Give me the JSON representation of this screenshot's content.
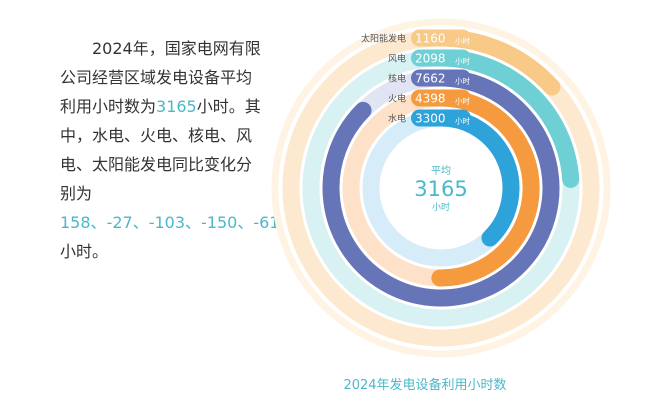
{
  "description": {
    "part1": "2024年，国家电网有限公司经营区域发电设备平均利用小时数为",
    "avg_value": "3165",
    "part2": "小时。其中，水电、火电、核电、风电、太阳能发电同比变化分别为",
    "changes": [
      "158",
      "-27",
      "-103",
      "-150",
      "-61"
    ],
    "separator": "、",
    "part3": "小时。"
  },
  "chart_data": {
    "type": "radial bar",
    "title": "2024年发电设备利用小时数",
    "center": {
      "label": "平均",
      "value": "3165",
      "unit": "小时"
    },
    "unit": "小时",
    "series": [
      {
        "name": "太阳能发电",
        "value": 1160,
        "color": "#f8c987"
      },
      {
        "name": "风电",
        "value": 2098,
        "color": "#6ecfd4"
      },
      {
        "name": "核电",
        "value": 7662,
        "color": "#6675b8"
      },
      {
        "name": "火电",
        "value": 4398,
        "color": "#f59a3e"
      },
      {
        "name": "水电",
        "value": 3300,
        "color": "#2ea3da"
      }
    ],
    "track_colors": [
      "#fde9cf",
      "#d8f1f2",
      "#e0e4f3",
      "#fde2c9",
      "#d6ecf8"
    ]
  }
}
